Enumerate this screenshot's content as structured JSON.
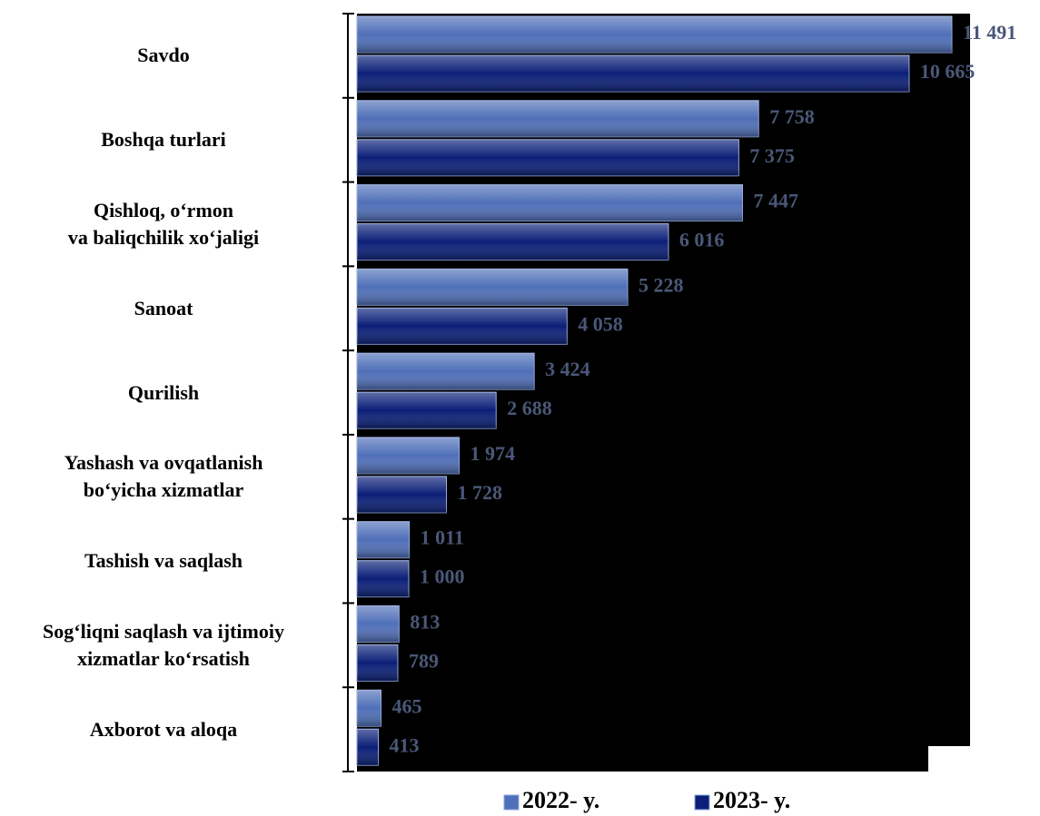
{
  "chart_data": {
    "type": "hbar",
    "categories": [
      "Savdo",
      "Boshqa turlari",
      "Qishloq, o‘rmon\nva baliqchilik xo‘jaligi",
      "Sanoat",
      "Qurilish",
      "Yashash va ovqatlanish\nbo‘yicha xizmatlar",
      "Tashish va saqlash",
      "Sog‘liqni saqlash va ijtimoiy\nxizmatlar ko‘rsatish",
      "Axborot va aloqa"
    ],
    "series": [
      {
        "name": "2022- y.",
        "color": "#4f6fb8",
        "values": [
          11491,
          7758,
          7447,
          5228,
          3424,
          1974,
          1011,
          813,
          465
        ],
        "value_labels": [
          "11 491",
          "7 758",
          "7 447",
          "5 228",
          "3 424",
          "1 974",
          "1 011",
          "813",
          "465"
        ]
      },
      {
        "name": "2023- y.",
        "color": "#0b1f78",
        "values": [
          10665,
          7375,
          6016,
          4058,
          2688,
          1728,
          1000,
          789,
          413
        ],
        "value_labels": [
          "10 665",
          "7 375",
          "6 016",
          "4 058",
          "2 688",
          "1 728",
          "1 000",
          "789",
          "413"
        ]
      }
    ],
    "legend": "bottom"
  }
}
